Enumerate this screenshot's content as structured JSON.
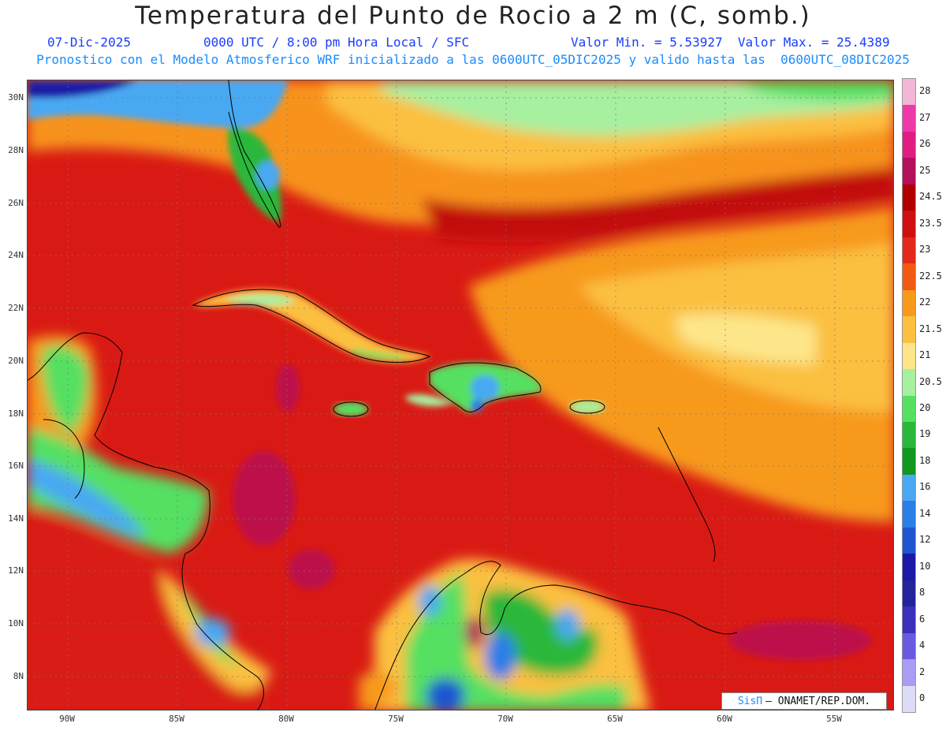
{
  "title": "Temperatura del Punto de Rocio a 2 m (C, somb.)",
  "subtitle": {
    "date": "07-Dic-2025",
    "time": "0000 UTC / 8:00 pm Hora Local / SFC",
    "minmax": "Valor Min. = 5.53927  Valor Max. = 25.4389"
  },
  "forecast_line": "Pronostico con el Modelo Atmosferico WRF inicializado a las 0600UTC_05DIC2025 y valido hasta las  0600UTC_08DIC2025",
  "latitude_labels": [
    "30N",
    "28N",
    "26N",
    "24N",
    "22N",
    "20N",
    "18N",
    "16N",
    "14N",
    "12N",
    "10N",
    "8N"
  ],
  "longitude_labels": [
    "90W",
    "85W",
    "80W",
    "75W",
    "70W",
    "65W",
    "60W",
    "55W"
  ],
  "colorbar": {
    "labels": [
      "28",
      "27",
      "26",
      "25",
      "24.5",
      "23.5",
      "23",
      "22.5",
      "22",
      "21.5",
      "21",
      "20.5",
      "20",
      "19",
      "18",
      "16",
      "14",
      "12",
      "10",
      "8",
      "6",
      "4",
      "2",
      "0"
    ],
    "colors": [
      "#f4b6d6",
      "#ee3aa8",
      "#e01e82",
      "#b4105c",
      "#b00000",
      "#d01010",
      "#e32a1a",
      "#f25a14",
      "#f79a1a",
      "#fbc040",
      "#fde68a",
      "#a7f0a0",
      "#55e062",
      "#2ab83a",
      "#11981e",
      "#4aa8f2",
      "#2a7ee8",
      "#1e56d0",
      "#1a1aa6",
      "#24249a",
      "#3a30bc",
      "#6a5ae0",
      "#a89cf4",
      "#dcdcf8"
    ]
  },
  "credit": {
    "brand": "SisΠ",
    "org": "– ONAMET/REP.DOM."
  }
}
